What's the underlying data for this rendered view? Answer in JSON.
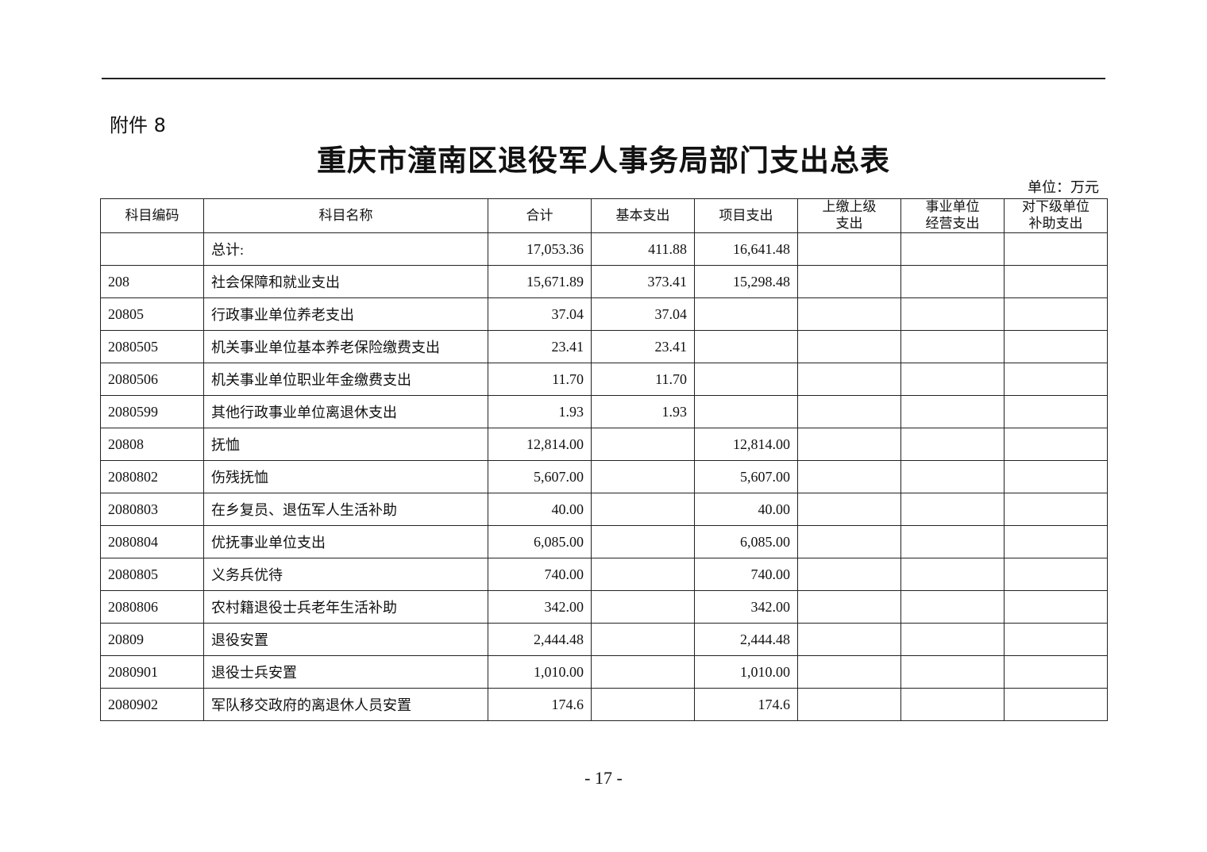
{
  "attachment_label": "附件 8",
  "title": "重庆市潼南区退役军人事务局部门支出总表",
  "unit": "单位：万元",
  "table": {
    "headers": [
      "科目编码",
      "科目名称",
      "合计",
      "基本支出",
      "项目支出",
      "上缴上级\n支出",
      "事业单位\n经营支出",
      "对下级单位\n补助支出"
    ],
    "rows": [
      [
        "",
        "总计:",
        "17,053.36",
        "411.88",
        "16,641.48",
        "",
        "",
        ""
      ],
      [
        "208",
        "社会保障和就业支出",
        "15,671.89",
        "373.41",
        "15,298.48",
        "",
        "",
        ""
      ],
      [
        "20805",
        "行政事业单位养老支出",
        "37.04",
        "37.04",
        "",
        "",
        "",
        ""
      ],
      [
        "2080505",
        "机关事业单位基本养老保险缴费支出",
        "23.41",
        "23.41",
        "",
        "",
        "",
        ""
      ],
      [
        "2080506",
        "机关事业单位职业年金缴费支出",
        "11.70",
        "11.70",
        "",
        "",
        "",
        ""
      ],
      [
        "2080599",
        "其他行政事业单位离退休支出",
        "1.93",
        "1.93",
        "",
        "",
        "",
        ""
      ],
      [
        "20808",
        "抚恤",
        "12,814.00",
        "",
        "12,814.00",
        "",
        "",
        ""
      ],
      [
        "2080802",
        "伤残抚恤",
        "5,607.00",
        "",
        "5,607.00",
        "",
        "",
        ""
      ],
      [
        "2080803",
        "在乡复员、退伍军人生活补助",
        "40.00",
        "",
        "40.00",
        "",
        "",
        ""
      ],
      [
        "2080804",
        "优抚事业单位支出",
        "6,085.00",
        "",
        "6,085.00",
        "",
        "",
        ""
      ],
      [
        "2080805",
        "义务兵优待",
        "740.00",
        "",
        "740.00",
        "",
        "",
        ""
      ],
      [
        "2080806",
        "农村籍退役士兵老年生活补助",
        "342.00",
        "",
        "342.00",
        "",
        "",
        ""
      ],
      [
        "20809",
        "退役安置",
        "2,444.48",
        "",
        "2,444.48",
        "",
        "",
        ""
      ],
      [
        "2080901",
        "退役士兵安置",
        "1,010.00",
        "",
        "1,010.00",
        "",
        "",
        ""
      ],
      [
        "2080902",
        "军队移交政府的离退休人员安置",
        "174.6",
        "",
        "174.6",
        "",
        "",
        ""
      ]
    ]
  },
  "page_number": "-  17  -"
}
